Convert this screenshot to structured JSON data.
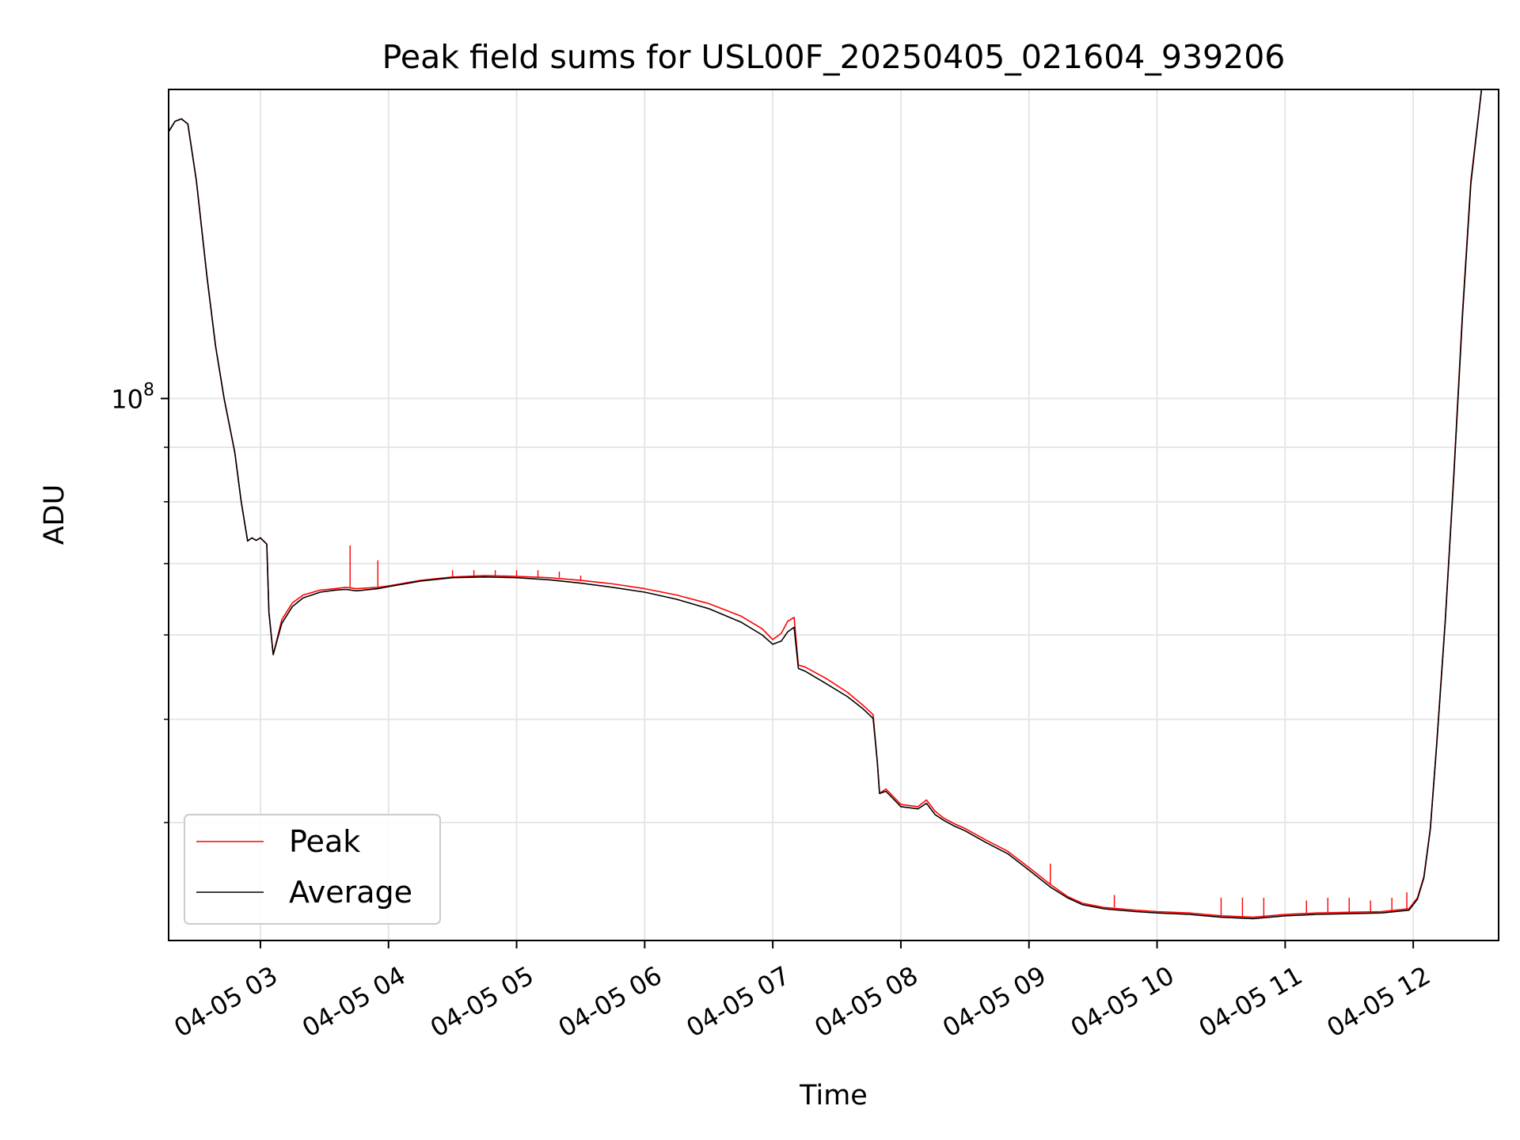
{
  "chart_data": {
    "type": "line",
    "title": "Peak field sums for USL00F_20250405_021604_939206",
    "xlabel": "Time",
    "ylabel": "ADU",
    "y_scale": "log",
    "xlim": [
      "04-05 02:17",
      "04-05 12:40"
    ],
    "ylim": [
      31000000,
      195000000
    ],
    "grid": true,
    "legend_position": "lower-left",
    "x_tick_labels": [
      "04-05 03",
      "04-05 04",
      "04-05 05",
      "04-05 06",
      "04-05 07",
      "04-05 08",
      "04-05 09",
      "04-05 10",
      "04-05 11",
      "04-05 12"
    ],
    "y_tick_labels": [
      {
        "value": 100000000,
        "base": "10",
        "exponent": "8"
      }
    ],
    "y_minor_ticks": [
      40000000,
      50000000,
      60000000,
      70000000,
      80000000,
      90000000,
      200000000
    ],
    "series": [
      {
        "name": "Peak",
        "color": "#ff0000",
        "points": [
          [
            "04-05 02:17",
            178000000
          ],
          [
            "04-05 02:20",
            182000000
          ],
          [
            "04-05 02:23",
            183000000
          ],
          [
            "04-05 02:26",
            181000000
          ],
          [
            "04-05 02:30",
            160000000
          ],
          [
            "04-05 02:35",
            130000000
          ],
          [
            "04-05 02:39",
            112000000
          ],
          [
            "04-05 02:43",
            100000000
          ],
          [
            "04-05 02:48",
            89000000
          ],
          [
            "04-05 02:51",
            80000000
          ],
          [
            "04-05 02:54",
            73500000
          ],
          [
            "04-05 02:56",
            74000000
          ],
          [
            "04-05 02:58",
            73600000
          ],
          [
            "04-05 03:00",
            74000000
          ],
          [
            "04-05 03:03",
            73000000
          ],
          [
            "04-05 03:04",
            63000000
          ],
          [
            "04-05 03:06",
            57500000
          ],
          [
            "04-05 03:10",
            62000000
          ],
          [
            "04-05 03:15",
            64300000
          ],
          [
            "04-05 03:20",
            65400000
          ],
          [
            "04-05 03:28",
            66100000
          ],
          [
            "04-05 03:35",
            66300000
          ],
          [
            "04-05 03:40",
            66500000
          ],
          [
            "04-05 03:45",
            66300000
          ],
          [
            "04-05 03:55",
            66500000
          ],
          [
            "04-05 04:00",
            66700000
          ],
          [
            "04-05 04:15",
            67500000
          ],
          [
            "04-05 04:30",
            68000000
          ],
          [
            "04-05 04:45",
            68200000
          ],
          [
            "04-05 05:00",
            68100000
          ],
          [
            "04-05 05:15",
            67900000
          ],
          [
            "04-05 05:30",
            67500000
          ],
          [
            "04-05 05:45",
            67000000
          ],
          [
            "04-05 06:00",
            66300000
          ],
          [
            "04-05 06:15",
            65400000
          ],
          [
            "04-05 06:30",
            64200000
          ],
          [
            "04-05 06:45",
            62500000
          ],
          [
            "04-05 06:55",
            60800000
          ],
          [
            "04-05 07:00",
            59400000
          ],
          [
            "04-05 07:04",
            60200000
          ],
          [
            "04-05 07:07",
            61800000
          ],
          [
            "04-05 07:10",
            62300000
          ],
          [
            "04-05 07:12",
            56200000
          ],
          [
            "04-05 07:15",
            56000000
          ],
          [
            "04-05 07:25",
            54600000
          ],
          [
            "04-05 07:35",
            53000000
          ],
          [
            "04-05 07:42",
            51600000
          ],
          [
            "04-05 07:47",
            50500000
          ],
          [
            "04-05 07:49",
            45500000
          ],
          [
            "04-05 07:50",
            42600000
          ],
          [
            "04-05 07:53",
            43000000
          ],
          [
            "04-05 08:00",
            41600000
          ],
          [
            "04-05 08:08",
            41400000
          ],
          [
            "04-05 08:12",
            42000000
          ],
          [
            "04-05 08:16",
            41000000
          ],
          [
            "04-05 08:20",
            40400000
          ],
          [
            "04-05 08:25",
            39900000
          ],
          [
            "04-05 08:30",
            39500000
          ],
          [
            "04-05 08:40",
            38500000
          ],
          [
            "04-05 08:50",
            37600000
          ],
          [
            "04-05 09:00",
            36300000
          ],
          [
            "04-05 09:10",
            35000000
          ],
          [
            "04-05 09:18",
            34100000
          ],
          [
            "04-05 09:25",
            33600000
          ],
          [
            "04-05 09:35",
            33300000
          ],
          [
            "04-05 09:50",
            33100000
          ],
          [
            "04-05 10:00",
            33000000
          ],
          [
            "04-05 10:15",
            32900000
          ],
          [
            "04-05 10:30",
            32700000
          ],
          [
            "04-05 10:45",
            32600000
          ],
          [
            "04-05 11:00",
            32800000
          ],
          [
            "04-05 11:15",
            32900000
          ],
          [
            "04-05 11:30",
            32950000
          ],
          [
            "04-05 11:45",
            33000000
          ],
          [
            "04-05 11:58",
            33200000
          ],
          [
            "04-05 12:02",
            34000000
          ],
          [
            "04-05 12:05",
            35600000
          ],
          [
            "04-05 12:08",
            39500000
          ],
          [
            "04-05 12:11",
            47500000
          ],
          [
            "04-05 12:15",
            62000000
          ],
          [
            "04-05 12:19",
            85000000
          ],
          [
            "04-05 12:23",
            120000000
          ],
          [
            "04-05 12:27",
            160000000
          ],
          [
            "04-05 12:32",
            195000000
          ]
        ],
        "spikes": [
          [
            "04-05 03:42",
            72800000
          ],
          [
            "04-05 03:55",
            70500000
          ],
          [
            "04-05 04:30",
            69000000
          ],
          [
            "04-05 04:40",
            69000000
          ],
          [
            "04-05 04:50",
            69000000
          ],
          [
            "04-05 05:00",
            69000000
          ],
          [
            "04-05 05:10",
            69000000
          ],
          [
            "04-05 05:20",
            68800000
          ],
          [
            "04-05 05:30",
            68200000
          ],
          [
            "04-05 09:10",
            36600000
          ],
          [
            "04-05 09:40",
            34200000
          ],
          [
            "04-05 10:30",
            34000000
          ],
          [
            "04-05 10:40",
            34000000
          ],
          [
            "04-05 10:50",
            34000000
          ],
          [
            "04-05 11:10",
            33800000
          ],
          [
            "04-05 11:20",
            34000000
          ],
          [
            "04-05 11:30",
            34000000
          ],
          [
            "04-05 11:40",
            33800000
          ],
          [
            "04-05 11:50",
            34000000
          ],
          [
            "04-05 11:57",
            34400000
          ]
        ]
      },
      {
        "name": "Average",
        "color": "#000000",
        "points": [
          [
            "04-05 02:17",
            178000000
          ],
          [
            "04-05 02:20",
            182000000
          ],
          [
            "04-05 02:23",
            183000000
          ],
          [
            "04-05 02:26",
            181000000
          ],
          [
            "04-05 02:30",
            160000000
          ],
          [
            "04-05 02:35",
            130000000
          ],
          [
            "04-05 02:39",
            112000000
          ],
          [
            "04-05 02:43",
            100000000
          ],
          [
            "04-05 02:48",
            89000000
          ],
          [
            "04-05 02:51",
            80000000
          ],
          [
            "04-05 02:54",
            73500000
          ],
          [
            "04-05 02:56",
            74000000
          ],
          [
            "04-05 02:58",
            73600000
          ],
          [
            "04-05 03:00",
            74000000
          ],
          [
            "04-05 03:03",
            73000000
          ],
          [
            "04-05 03:04",
            63000000
          ],
          [
            "04-05 03:06",
            57500000
          ],
          [
            "04-05 03:10",
            61500000
          ],
          [
            "04-05 03:15",
            63800000
          ],
          [
            "04-05 03:20",
            65000000
          ],
          [
            "04-05 03:28",
            65800000
          ],
          [
            "04-05 03:35",
            66100000
          ],
          [
            "04-05 03:40",
            66200000
          ],
          [
            "04-05 03:45",
            66000000
          ],
          [
            "04-05 03:55",
            66300000
          ],
          [
            "04-05 04:00",
            66600000
          ],
          [
            "04-05 04:15",
            67400000
          ],
          [
            "04-05 04:30",
            67900000
          ],
          [
            "04-05 04:45",
            68000000
          ],
          [
            "04-05 05:00",
            67900000
          ],
          [
            "04-05 05:15",
            67600000
          ],
          [
            "04-05 05:30",
            67100000
          ],
          [
            "04-05 05:45",
            66500000
          ],
          [
            "04-05 06:00",
            65800000
          ],
          [
            "04-05 06:15",
            64800000
          ],
          [
            "04-05 06:30",
            63500000
          ],
          [
            "04-05 06:45",
            61700000
          ],
          [
            "04-05 06:55",
            60000000
          ],
          [
            "04-05 07:00",
            58800000
          ],
          [
            "04-05 07:04",
            59200000
          ],
          [
            "04-05 07:07",
            60400000
          ],
          [
            "04-05 07:10",
            61000000
          ],
          [
            "04-05 07:12",
            55800000
          ],
          [
            "04-05 07:15",
            55500000
          ],
          [
            "04-05 07:25",
            54000000
          ],
          [
            "04-05 07:35",
            52500000
          ],
          [
            "04-05 07:42",
            51200000
          ],
          [
            "04-05 07:47",
            50100000
          ],
          [
            "04-05 07:49",
            45500000
          ],
          [
            "04-05 07:50",
            42600000
          ],
          [
            "04-05 07:53",
            42800000
          ],
          [
            "04-05 08:00",
            41400000
          ],
          [
            "04-05 08:08",
            41200000
          ],
          [
            "04-05 08:12",
            41700000
          ],
          [
            "04-05 08:16",
            40700000
          ],
          [
            "04-05 08:20",
            40200000
          ],
          [
            "04-05 08:25",
            39700000
          ],
          [
            "04-05 08:30",
            39300000
          ],
          [
            "04-05 08:40",
            38300000
          ],
          [
            "04-05 08:50",
            37400000
          ],
          [
            "04-05 09:00",
            36100000
          ],
          [
            "04-05 09:10",
            34800000
          ],
          [
            "04-05 09:18",
            34000000
          ],
          [
            "04-05 09:25",
            33500000
          ],
          [
            "04-05 09:35",
            33200000
          ],
          [
            "04-05 09:50",
            33000000
          ],
          [
            "04-05 10:00",
            32900000
          ],
          [
            "04-05 10:15",
            32800000
          ],
          [
            "04-05 10:30",
            32600000
          ],
          [
            "04-05 10:45",
            32500000
          ],
          [
            "04-05 11:00",
            32700000
          ],
          [
            "04-05 11:15",
            32800000
          ],
          [
            "04-05 11:30",
            32850000
          ],
          [
            "04-05 11:45",
            32900000
          ],
          [
            "04-05 11:58",
            33100000
          ],
          [
            "04-05 12:02",
            33900000
          ],
          [
            "04-05 12:05",
            35500000
          ],
          [
            "04-05 12:08",
            39400000
          ],
          [
            "04-05 12:11",
            47300000
          ],
          [
            "04-05 12:15",
            61800000
          ],
          [
            "04-05 12:19",
            84500000
          ],
          [
            "04-05 12:23",
            119000000
          ],
          [
            "04-05 12:27",
            159000000
          ],
          [
            "04-05 12:32",
            195000000
          ]
        ]
      }
    ]
  }
}
